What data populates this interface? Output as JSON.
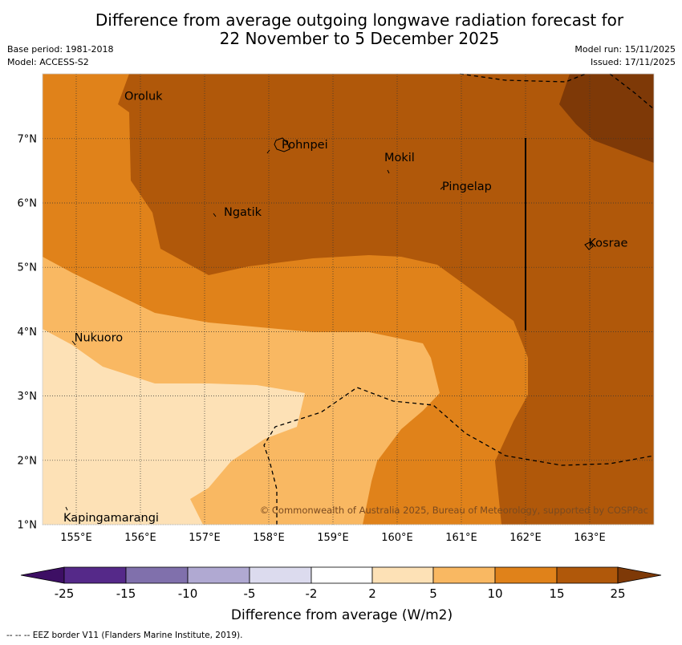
{
  "title": {
    "line1": "Difference from average outgoing longwave radiation forecast for",
    "line2": "22 November to 5 December 2025"
  },
  "meta": {
    "base_period": "Base period: 1981-2018",
    "model": "Model: ACCESS-S2",
    "model_run": "Model run: 15/11/2025",
    "issued": "Issued: 17/11/2025"
  },
  "map": {
    "lon_range": [
      154.5,
      164.0
    ],
    "lat_range": [
      1.0,
      8.0
    ],
    "x_ticks": [
      "155°E",
      "156°E",
      "157°E",
      "158°E",
      "159°E",
      "160°E",
      "161°E",
      "162°E",
      "163°E"
    ],
    "y_ticks": [
      "1°N",
      "2°N",
      "3°N",
      "4°N",
      "5°N",
      "6°N",
      "7°N"
    ],
    "places": [
      {
        "name": "Oroluk",
        "lon": 155.75,
        "lat": 7.6
      },
      {
        "name": "Pohnpei",
        "lon": 158.2,
        "lat": 6.85
      },
      {
        "name": "Mokil",
        "lon": 159.8,
        "lat": 6.65
      },
      {
        "name": "Pingelap",
        "lon": 160.7,
        "lat": 6.2
      },
      {
        "name": "Ngatik",
        "lon": 157.3,
        "lat": 5.8
      },
      {
        "name": "Kosrae",
        "lon": 162.98,
        "lat": 5.32
      },
      {
        "name": "Nukuoro",
        "lon": 154.97,
        "lat": 3.85
      },
      {
        "name": "Kapingamarangi",
        "lon": 154.8,
        "lat": 1.05
      }
    ],
    "copyright": "© Commonwealth of Australia 2025, Bureau of Meteorology, supported by COSPPac",
    "fill_colors": {
      "2-5": "#fde1b6",
      "5-10": "#f9b862",
      "10-15": "#e0821a",
      "15-25": "#b0580a",
      "gt25": "#7e3907"
    }
  },
  "colorbar": {
    "tick_labels": [
      "-25",
      "-15",
      "-10",
      "-5",
      "-2",
      "2",
      "5",
      "10",
      "15",
      "25"
    ],
    "colors": [
      "#3d0f64",
      "#552989",
      "#8070ac",
      "#b0a9d2",
      "#dcdbee",
      "#ffffff",
      "#fde1b6",
      "#f9b862",
      "#e0821a",
      "#b0580a",
      "#7e3907"
    ],
    "label": "Difference from average (W/m2)"
  },
  "footer": {
    "eez_note": "--  --  -- EEZ border V11 (Flanders Marine Institute, 2019)."
  }
}
